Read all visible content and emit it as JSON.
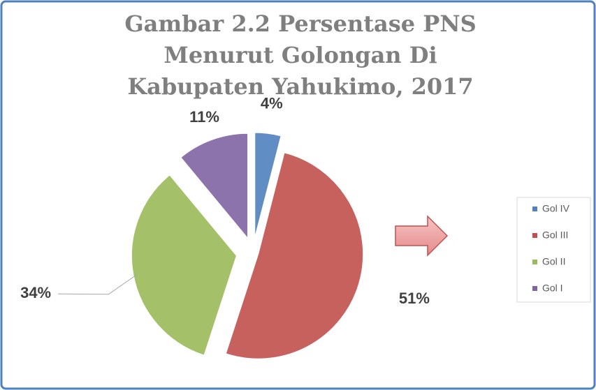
{
  "chart_data": {
    "type": "pie",
    "title": "Gambar 2.2 Persentase PNS Menurut Golongan Di Kabupaten Yahukimo, 2017",
    "categories": [
      "Gol IV",
      "Gol III",
      "Gol II",
      "Gol I"
    ],
    "values": [
      4,
      51,
      34,
      11
    ],
    "value_labels": [
      "4%",
      "51%",
      "34%",
      "11%"
    ],
    "colors": [
      "#4f81bd",
      "#c0504d",
      "#9bbb59",
      "#8064a2"
    ],
    "legend": "right"
  }
}
